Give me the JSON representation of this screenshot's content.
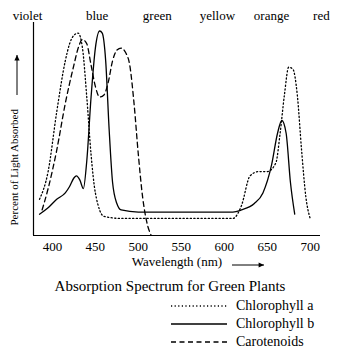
{
  "chart_data": {
    "type": "line",
    "title": "Absorption Spectrum for Green Plants",
    "x_label": "Wavelength (nm)",
    "y_label": "Percent of Light Absorbed",
    "xlim": [
      378,
      712
    ],
    "xticks": [
      400,
      450,
      500,
      550,
      600,
      650,
      700
    ],
    "ylim": [
      0,
      100
    ],
    "yticks": [],
    "tick_labels": "x",
    "grid": false,
    "legend": "bottom-right",
    "annotations": [
      {
        "text": "violet",
        "x": 371
      },
      {
        "text": "blue",
        "x": 452
      },
      {
        "text": "green",
        "x": 522
      },
      {
        "text": "yellow",
        "x": 592
      },
      {
        "text": "orange",
        "x": 655
      },
      {
        "text": "red",
        "x": 713
      }
    ],
    "series": [
      {
        "name": "Chlorophyll a",
        "color": "#000000",
        "line_style": "dotted",
        "x": [
          385,
          395,
          405,
          415,
          420,
          425,
          430,
          435,
          440,
          445,
          450,
          460,
          480,
          550,
          610,
          620,
          630,
          640,
          650,
          660,
          665,
          670,
          675,
          680,
          685,
          690,
          695,
          700
        ],
        "values": [
          17,
          30,
          58,
          82,
          90,
          94,
          95,
          88,
          65,
          38,
          20,
          9,
          8,
          8,
          8,
          14,
          28,
          30,
          30,
          34,
          48,
          66,
          79,
          78,
          66,
          40,
          18,
          8
        ]
      },
      {
        "name": "Chlorophyll b",
        "color": "#000000",
        "line_style": "solid",
        "x": [
          385,
          395,
          405,
          415,
          420,
          425,
          428,
          432,
          436,
          440,
          445,
          450,
          455,
          458,
          462,
          466,
          470,
          475,
          480,
          500,
          550,
          610,
          620,
          635,
          645,
          655,
          662,
          667,
          672,
          677,
          682
        ],
        "values": [
          10,
          13,
          17,
          20,
          23,
          27,
          28,
          26,
          22,
          35,
          65,
          88,
          96,
          95,
          82,
          50,
          25,
          15,
          12,
          11,
          11,
          11,
          12,
          15,
          20,
          33,
          48,
          54,
          48,
          25,
          10
        ]
      },
      {
        "name": "Carotenoids",
        "color": "#000000",
        "line_style": "dashed",
        "x": [
          388,
          395,
          405,
          415,
          425,
          430,
          435,
          440,
          445,
          450,
          455,
          460,
          465,
          470,
          475,
          480,
          485,
          490,
          495,
          500,
          505,
          510,
          515
        ],
        "values": [
          12,
          22,
          40,
          62,
          80,
          88,
          92,
          90,
          80,
          70,
          65,
          66,
          72,
          82,
          87,
          88,
          86,
          80,
          62,
          38,
          18,
          6,
          0
        ]
      }
    ]
  }
}
